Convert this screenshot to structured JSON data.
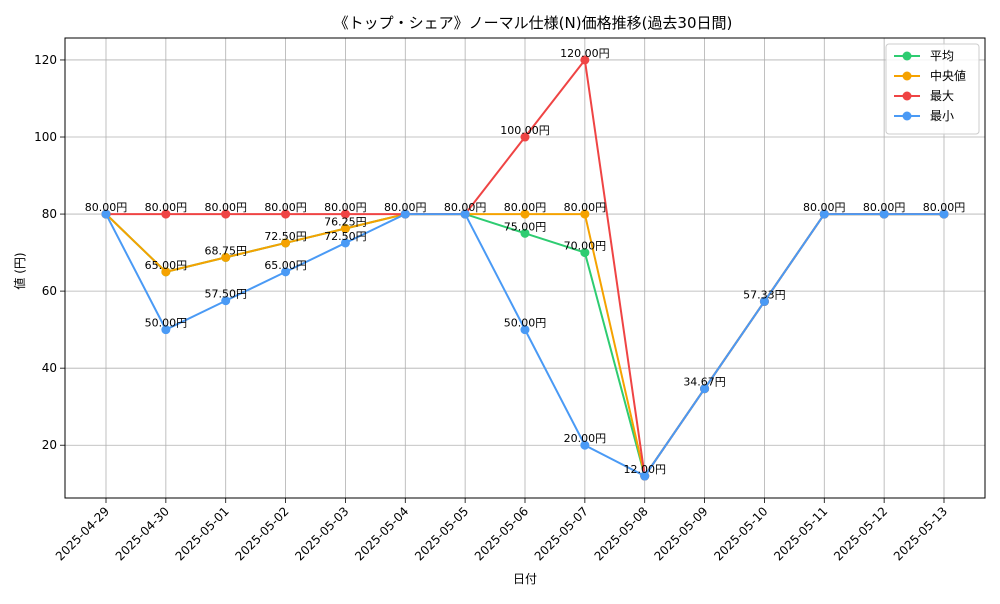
{
  "chart_data": {
    "type": "line",
    "title": "《トップ・シェア》ノーマル仕様(N)価格推移(過去30日間)",
    "xlabel": "日付",
    "ylabel": "値 (円)",
    "ylim": [
      6.3,
      125.7
    ],
    "yticks": [
      20,
      40,
      60,
      80,
      100,
      120
    ],
    "grid": true,
    "legend_position": "top-right",
    "value_suffix": "円",
    "categories": [
      "2025-04-29",
      "2025-04-30",
      "2025-05-01",
      "2025-05-02",
      "2025-05-03",
      "2025-05-04",
      "2025-05-05",
      "2025-05-06",
      "2025-05-07",
      "2025-05-08",
      "2025-05-09",
      "2025-05-10",
      "2025-05-11",
      "2025-05-12",
      "2025-05-13"
    ],
    "series": [
      {
        "name": "平均",
        "color": "#2ecc71",
        "values": [
          80,
          65,
          68.75,
          72.5,
          76.25,
          80,
          80,
          75,
          70,
          12,
          34.67,
          57.33,
          80,
          80,
          80
        ]
      },
      {
        "name": "中央値",
        "color": "#f5a200",
        "values": [
          80,
          65,
          68.75,
          72.5,
          76.25,
          80,
          80,
          80,
          80,
          12,
          34.67,
          57.33,
          80,
          80,
          80
        ]
      },
      {
        "name": "最大",
        "color": "#ef4444",
        "values": [
          80,
          80,
          80,
          80,
          80,
          80,
          80,
          100,
          120,
          12,
          34.67,
          57.33,
          80,
          80,
          80
        ]
      },
      {
        "name": "最小",
        "color": "#4a9af5",
        "values": [
          80,
          50,
          57.5,
          65,
          72.5,
          80,
          80,
          50,
          20,
          12,
          34.67,
          57.33,
          80,
          80,
          80
        ]
      }
    ],
    "data_labels": [
      {
        "i": 0,
        "text": "80.00円"
      },
      {
        "i": 1,
        "text": "80.00円"
      },
      {
        "i": 1,
        "text": "65.00円"
      },
      {
        "i": 1,
        "text": "50.00円"
      },
      {
        "i": 2,
        "text": "80.00円"
      },
      {
        "i": 2,
        "text": "68.75円"
      },
      {
        "i": 2,
        "text": "57.50円"
      },
      {
        "i": 3,
        "text": "80.00円"
      },
      {
        "i": 3,
        "text": "72.50円"
      },
      {
        "i": 3,
        "text": "65.00円"
      },
      {
        "i": 4,
        "text": "80.00円"
      },
      {
        "i": 4,
        "text": "76.25円"
      },
      {
        "i": 4,
        "text": "72.50円"
      },
      {
        "i": 5,
        "text": "80.00円"
      },
      {
        "i": 6,
        "text": "80.00円"
      },
      {
        "i": 7,
        "text": "100.00円"
      },
      {
        "i": 7,
        "text": "80.00円"
      },
      {
        "i": 7,
        "text": "75.00円"
      },
      {
        "i": 7,
        "text": "50.00円"
      },
      {
        "i": 8,
        "text": "120.00円"
      },
      {
        "i": 8,
        "text": "80.00円"
      },
      {
        "i": 8,
        "text": "70.00円"
      },
      {
        "i": 8,
        "text": "20.00円"
      },
      {
        "i": 9,
        "text": "12.00円"
      },
      {
        "i": 10,
        "text": "34.67円"
      },
      {
        "i": 11,
        "text": "57.33円"
      },
      {
        "i": 12,
        "text": "80.00円"
      },
      {
        "i": 13,
        "text": "80.00円"
      },
      {
        "i": 14,
        "text": "80.00円"
      }
    ]
  }
}
